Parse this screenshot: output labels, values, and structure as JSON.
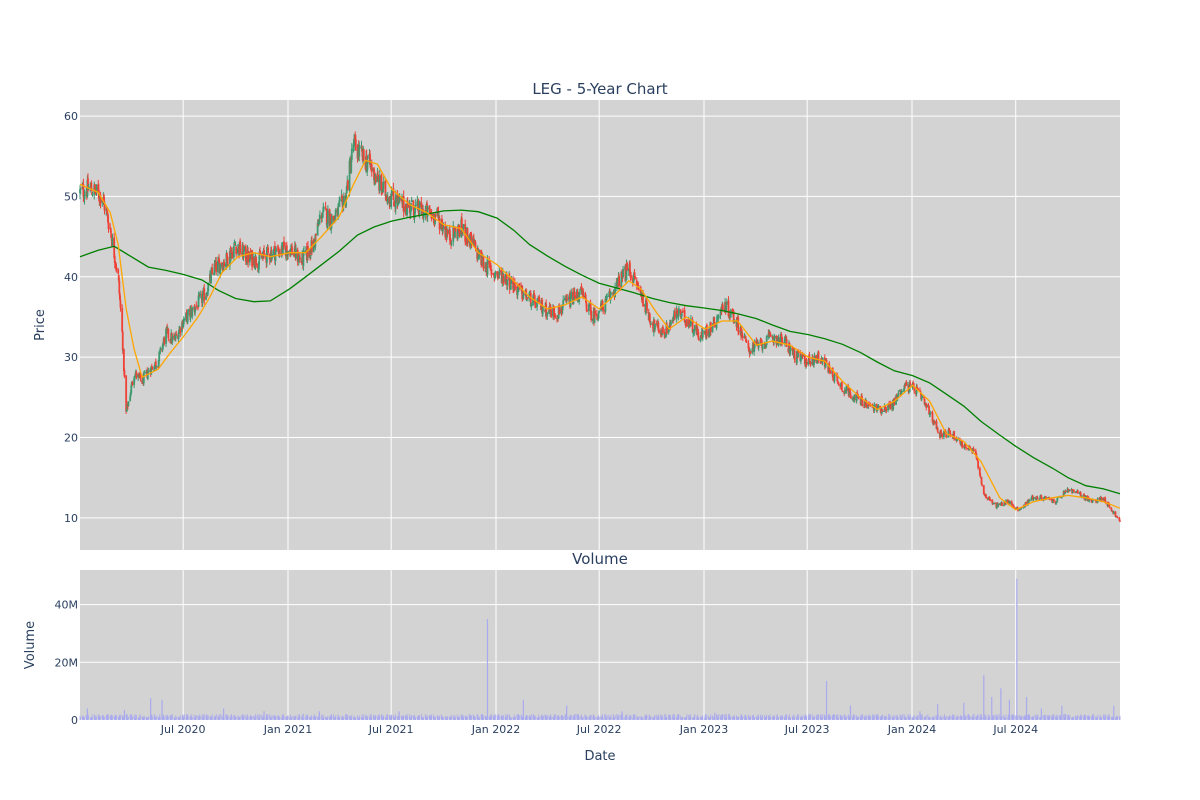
{
  "chart_data": {
    "type": "candlestick",
    "title": "LEG - 5-Year Chart",
    "price_panel": {
      "ylabel": "Price",
      "ylim": [
        6,
        62
      ],
      "yticks": [
        10,
        20,
        30,
        40,
        50,
        60
      ],
      "ytick_labels": [
        "10",
        "20",
        "30",
        "40",
        "50",
        "60"
      ],
      "up_color": "#3d9970",
      "down_color": "#ef4136",
      "ma_short_color": "#ffa500",
      "ma_long_color": "#008000",
      "close_points": [
        [
          "2020-01-02",
          50.5
        ],
        [
          "2020-01-20",
          51.0
        ],
        [
          "2020-02-10",
          50.0
        ],
        [
          "2020-02-24",
          46.0
        ],
        [
          "2020-03-09",
          40.0
        ],
        [
          "2020-03-16",
          33.0
        ],
        [
          "2020-03-23",
          23.0
        ],
        [
          "2020-04-06",
          28.0
        ],
        [
          "2020-04-20",
          27.0
        ],
        [
          "2020-05-04",
          28.5
        ],
        [
          "2020-05-18",
          29.5
        ],
        [
          "2020-06-01",
          33.0
        ],
        [
          "2020-06-15",
          32.0
        ],
        [
          "2020-07-01",
          34.5
        ],
        [
          "2020-07-20",
          36.0
        ],
        [
          "2020-08-10",
          38.0
        ],
        [
          "2020-08-24",
          41.0
        ],
        [
          "2020-09-14",
          42.0
        ],
        [
          "2020-10-01",
          44.0
        ],
        [
          "2020-10-19",
          42.5
        ],
        [
          "2020-11-09",
          42.0
        ],
        [
          "2020-12-01",
          43.0
        ],
        [
          "2021-01-04",
          43.5
        ],
        [
          "2021-01-25",
          42.0
        ],
        [
          "2021-02-15",
          44.0
        ],
        [
          "2021-03-01",
          48.0
        ],
        [
          "2021-03-22",
          47.0
        ],
        [
          "2021-04-12",
          50.0
        ],
        [
          "2021-04-26",
          56.5
        ],
        [
          "2021-05-10",
          55.0
        ],
        [
          "2021-05-24",
          54.0
        ],
        [
          "2021-06-14",
          51.0
        ],
        [
          "2021-06-28",
          50.0
        ],
        [
          "2021-07-19",
          49.0
        ],
        [
          "2021-08-09",
          48.5
        ],
        [
          "2021-08-30",
          48.0
        ],
        [
          "2021-09-20",
          47.5
        ],
        [
          "2021-10-11",
          45.0
        ],
        [
          "2021-11-01",
          46.0
        ],
        [
          "2021-11-22",
          44.0
        ],
        [
          "2021-12-06",
          42.0
        ],
        [
          "2021-12-27",
          40.5
        ],
        [
          "2022-01-17",
          40.0
        ],
        [
          "2022-02-14",
          38.0
        ],
        [
          "2022-03-07",
          37.0
        ],
        [
          "2022-03-28",
          36.0
        ],
        [
          "2022-04-18",
          35.5
        ],
        [
          "2022-05-09",
          37.0
        ],
        [
          "2022-05-30",
          38.0
        ],
        [
          "2022-06-20",
          35.0
        ],
        [
          "2022-07-11",
          36.5
        ],
        [
          "2022-08-01",
          39.0
        ],
        [
          "2022-08-22",
          41.0
        ],
        [
          "2022-09-12",
          38.0
        ],
        [
          "2022-10-03",
          34.0
        ],
        [
          "2022-10-24",
          33.0
        ],
        [
          "2022-11-14",
          35.5
        ],
        [
          "2022-12-05",
          34.5
        ],
        [
          "2022-12-26",
          32.5
        ],
        [
          "2023-01-16",
          34.0
        ],
        [
          "2023-02-06",
          36.5
        ],
        [
          "2023-02-27",
          34.5
        ],
        [
          "2023-03-20",
          31.0
        ],
        [
          "2023-04-10",
          31.5
        ],
        [
          "2023-05-01",
          32.5
        ],
        [
          "2023-05-22",
          32.0
        ],
        [
          "2023-06-12",
          30.0
        ],
        [
          "2023-07-03",
          29.5
        ],
        [
          "2023-07-24",
          30.0
        ],
        [
          "2023-08-14",
          28.0
        ],
        [
          "2023-09-04",
          26.0
        ],
        [
          "2023-09-25",
          25.0
        ],
        [
          "2023-10-16",
          24.0
        ],
        [
          "2023-11-06",
          23.5
        ],
        [
          "2023-11-27",
          24.0
        ],
        [
          "2023-12-18",
          26.5
        ],
        [
          "2024-01-08",
          26.0
        ],
        [
          "2024-01-29",
          23.5
        ],
        [
          "2024-02-19",
          20.5
        ],
        [
          "2024-03-11",
          20.5
        ],
        [
          "2024-04-01",
          19.0
        ],
        [
          "2024-04-22",
          18.0
        ],
        [
          "2024-05-06",
          13.0
        ],
        [
          "2024-05-27",
          11.5
        ],
        [
          "2024-06-17",
          12.0
        ],
        [
          "2024-07-08",
          11.0
        ],
        [
          "2024-07-29",
          12.5
        ],
        [
          "2024-08-19",
          12.5
        ],
        [
          "2024-09-09",
          12.0
        ],
        [
          "2024-09-30",
          13.5
        ],
        [
          "2024-10-21",
          13.0
        ],
        [
          "2024-11-11",
          12.0
        ],
        [
          "2024-12-02",
          12.5
        ],
        [
          "2024-12-16",
          11.0
        ],
        [
          "2024-12-31",
          9.5
        ]
      ],
      "ma_short_points": [
        [
          "2020-01-02",
          51.5
        ],
        [
          "2020-02-03",
          50.5
        ],
        [
          "2020-02-24",
          48.0
        ],
        [
          "2020-03-09",
          44.0
        ],
        [
          "2020-03-23",
          36.0
        ],
        [
          "2020-04-06",
          31.0
        ],
        [
          "2020-04-20",
          27.5
        ],
        [
          "2020-05-18",
          28.5
        ],
        [
          "2020-06-08",
          30.5
        ],
        [
          "2020-07-01",
          32.5
        ],
        [
          "2020-07-27",
          35.0
        ],
        [
          "2020-08-17",
          37.5
        ],
        [
          "2020-09-07",
          40.5
        ],
        [
          "2020-10-05",
          42.5
        ],
        [
          "2020-11-02",
          43.0
        ],
        [
          "2020-12-01",
          42.5
        ],
        [
          "2021-01-04",
          43.0
        ],
        [
          "2021-02-01",
          43.0
        ],
        [
          "2021-03-01",
          45.0
        ],
        [
          "2021-04-01",
          47.5
        ],
        [
          "2021-04-26",
          51.5
        ],
        [
          "2021-05-17",
          54.5
        ],
        [
          "2021-06-07",
          54.0
        ],
        [
          "2021-07-01",
          51.0
        ],
        [
          "2021-08-02",
          49.0
        ],
        [
          "2021-09-01",
          48.0
        ],
        [
          "2021-10-01",
          46.5
        ],
        [
          "2021-11-01",
          46.0
        ],
        [
          "2021-12-01",
          43.0
        ],
        [
          "2022-01-03",
          41.5
        ],
        [
          "2022-02-01",
          39.5
        ],
        [
          "2022-03-01",
          37.5
        ],
        [
          "2022-04-01",
          36.0
        ],
        [
          "2022-05-02",
          36.5
        ],
        [
          "2022-06-01",
          37.5
        ],
        [
          "2022-07-01",
          36.0
        ],
        [
          "2022-07-25",
          37.5
        ],
        [
          "2022-08-22",
          39.5
        ],
        [
          "2022-09-12",
          38.5
        ],
        [
          "2022-10-10",
          35.5
        ],
        [
          "2022-11-01",
          33.5
        ],
        [
          "2022-12-01",
          35.0
        ],
        [
          "2023-01-03",
          33.5
        ],
        [
          "2023-02-01",
          34.5
        ],
        [
          "2023-03-01",
          34.5
        ],
        [
          "2023-04-03",
          31.5
        ],
        [
          "2023-05-01",
          32.0
        ],
        [
          "2023-06-01",
          31.5
        ],
        [
          "2023-07-03",
          30.0
        ],
        [
          "2023-08-01",
          29.5
        ],
        [
          "2023-09-01",
          27.0
        ],
        [
          "2023-10-02",
          25.0
        ],
        [
          "2023-11-01",
          23.5
        ],
        [
          "2023-12-01",
          24.5
        ],
        [
          "2024-01-02",
          26.5
        ],
        [
          "2024-02-01",
          24.5
        ],
        [
          "2024-03-01",
          20.5
        ],
        [
          "2024-04-01",
          19.5
        ],
        [
          "2024-05-01",
          17.0
        ],
        [
          "2024-06-03",
          12.5
        ],
        [
          "2024-07-01",
          11.0
        ],
        [
          "2024-08-01",
          12.0
        ],
        [
          "2024-09-03",
          12.5
        ],
        [
          "2024-10-01",
          12.8
        ],
        [
          "2024-11-01",
          12.5
        ],
        [
          "2024-12-02",
          12.0
        ],
        [
          "2024-12-31",
          11.2
        ]
      ],
      "ma_long_points": [
        [
          "2020-01-02",
          42.5
        ],
        [
          "2020-02-03",
          43.3
        ],
        [
          "2020-03-02",
          43.8
        ],
        [
          "2020-04-01",
          42.5
        ],
        [
          "2020-05-01",
          41.2
        ],
        [
          "2020-06-01",
          40.8
        ],
        [
          "2020-07-01",
          40.3
        ],
        [
          "2020-08-03",
          39.6
        ],
        [
          "2020-09-01",
          38.3
        ],
        [
          "2020-10-01",
          37.3
        ],
        [
          "2020-11-02",
          36.9
        ],
        [
          "2020-12-01",
          37.0
        ],
        [
          "2021-01-04",
          38.5
        ],
        [
          "2021-02-01",
          40.0
        ],
        [
          "2021-03-01",
          41.5
        ],
        [
          "2021-04-01",
          43.2
        ],
        [
          "2021-05-03",
          45.2
        ],
        [
          "2021-06-01",
          46.2
        ],
        [
          "2021-07-01",
          46.9
        ],
        [
          "2021-08-02",
          47.4
        ],
        [
          "2021-09-01",
          47.8
        ],
        [
          "2021-10-01",
          48.2
        ],
        [
          "2021-11-01",
          48.3
        ],
        [
          "2021-12-01",
          48.1
        ],
        [
          "2022-01-03",
          47.3
        ],
        [
          "2022-02-01",
          45.8
        ],
        [
          "2022-03-01",
          44.0
        ],
        [
          "2022-04-01",
          42.6
        ],
        [
          "2022-05-02",
          41.3
        ],
        [
          "2022-06-01",
          40.2
        ],
        [
          "2022-07-01",
          39.2
        ],
        [
          "2022-08-01",
          38.6
        ],
        [
          "2022-09-01",
          38.0
        ],
        [
          "2022-10-03",
          37.3
        ],
        [
          "2022-11-01",
          36.8
        ],
        [
          "2022-12-01",
          36.4
        ],
        [
          "2023-01-03",
          36.1
        ],
        [
          "2023-02-01",
          35.8
        ],
        [
          "2023-03-01",
          35.4
        ],
        [
          "2023-04-03",
          34.8
        ],
        [
          "2023-05-01",
          34.0
        ],
        [
          "2023-06-01",
          33.2
        ],
        [
          "2023-07-03",
          32.8
        ],
        [
          "2023-08-01",
          32.3
        ],
        [
          "2023-09-01",
          31.6
        ],
        [
          "2023-10-02",
          30.6
        ],
        [
          "2023-11-01",
          29.4
        ],
        [
          "2023-12-01",
          28.3
        ],
        [
          "2024-01-02",
          27.7
        ],
        [
          "2024-02-01",
          26.8
        ],
        [
          "2024-03-01",
          25.4
        ],
        [
          "2024-04-01",
          23.9
        ],
        [
          "2024-05-01",
          22.0
        ],
        [
          "2024-06-03",
          20.3
        ],
        [
          "2024-07-01",
          18.9
        ],
        [
          "2024-08-01",
          17.5
        ],
        [
          "2024-09-03",
          16.2
        ],
        [
          "2024-10-01",
          15.0
        ],
        [
          "2024-11-01",
          14.0
        ],
        [
          "2024-12-02",
          13.6
        ],
        [
          "2024-12-31",
          13.0
        ]
      ]
    },
    "volume_panel": {
      "title": "Volume",
      "ylabel": "Volume",
      "ylim": [
        0,
        52000000
      ],
      "yticks": [
        0,
        20000000,
        40000000
      ],
      "ytick_labels": [
        "0",
        "20M",
        "40M"
      ],
      "bar_color": "#aaaaee",
      "base_volume": 1500000,
      "spikes": [
        [
          "2020-01-15",
          4000000
        ],
        [
          "2020-03-20",
          3500000
        ],
        [
          "2020-05-05",
          7500000
        ],
        [
          "2020-05-25",
          7000000
        ],
        [
          "2020-09-10",
          4000000
        ],
        [
          "2020-11-20",
          3000000
        ],
        [
          "2021-02-25",
          3000000
        ],
        [
          "2021-07-15",
          3000000
        ],
        [
          "2021-12-17",
          35000000
        ],
        [
          "2022-02-18",
          7000000
        ],
        [
          "2022-05-05",
          5000000
        ],
        [
          "2022-08-10",
          3000000
        ],
        [
          "2023-01-20",
          2500000
        ],
        [
          "2023-08-04",
          13500000
        ],
        [
          "2023-09-15",
          5000000
        ],
        [
          "2024-01-15",
          3000000
        ],
        [
          "2024-02-15",
          5500000
        ],
        [
          "2024-04-01",
          6000000
        ],
        [
          "2024-05-06",
          15500000
        ],
        [
          "2024-05-20",
          8000000
        ],
        [
          "2024-06-05",
          11000000
        ],
        [
          "2024-06-20",
          7000000
        ],
        [
          "2024-07-03",
          49000000
        ],
        [
          "2024-07-20",
          8000000
        ],
        [
          "2024-08-15",
          4000000
        ],
        [
          "2024-09-20",
          5000000
        ],
        [
          "2024-12-20",
          5000000
        ]
      ]
    },
    "x_axis": {
      "xlabel": "Date",
      "range": [
        "2020-01-02",
        "2024-12-31"
      ],
      "ticks": [
        "2020-07-01",
        "2021-01-01",
        "2021-07-01",
        "2022-01-01",
        "2022-07-01",
        "2023-01-01",
        "2023-07-01",
        "2024-01-01",
        "2024-07-01"
      ],
      "tick_labels": [
        "Jul 2020",
        "Jan 2021",
        "Jul 2021",
        "Jan 2022",
        "Jul 2022",
        "Jan 2023",
        "Jul 2023",
        "Jan 2024",
        "Jul 2024"
      ]
    },
    "grid": true,
    "plot_bgcolor": "#d3d3d3",
    "grid_color": "#ffffff"
  }
}
